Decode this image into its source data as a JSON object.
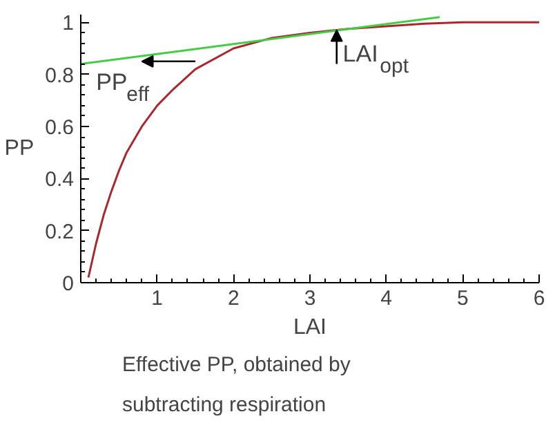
{
  "chart_data": {
    "type": "line",
    "xlabel": "LAI",
    "ylabel": "PP",
    "xlim": [
      0,
      6
    ],
    "ylim": [
      0,
      1.03
    ],
    "xticks": [
      1,
      2,
      3,
      4,
      5,
      6
    ],
    "yticks": [
      0,
      0.2,
      0.4,
      0.6,
      0.8,
      1
    ],
    "grid": false,
    "line_style": "solid",
    "series": [
      {
        "color": "#a8282e",
        "x": [
          0.1,
          0.2,
          0.3,
          0.4,
          0.5,
          0.6,
          0.8,
          1.0,
          1.2,
          1.5,
          2.0,
          2.5,
          3.0,
          3.5,
          4.0,
          4.5,
          5.0,
          6.0
        ],
        "values": [
          0.02,
          0.15,
          0.26,
          0.35,
          0.43,
          0.5,
          0.6,
          0.68,
          0.74,
          0.82,
          0.9,
          0.94,
          0.96,
          0.975,
          0.985,
          0.995,
          1.0,
          1.0
        ]
      },
      {
        "color": "#44cc44",
        "x": [
          0,
          4.7
        ],
        "values": [
          0.84,
          1.02
        ]
      }
    ],
    "annotations": [
      {
        "text": "PP$_{eff}$",
        "x": 0.8,
        "y": 0.85
      },
      {
        "text": "LAI$_{opt}$",
        "x": 3.35,
        "y": 0.97
      },
      "Effective PP, obtained by subtracting respiration"
    ]
  }
}
